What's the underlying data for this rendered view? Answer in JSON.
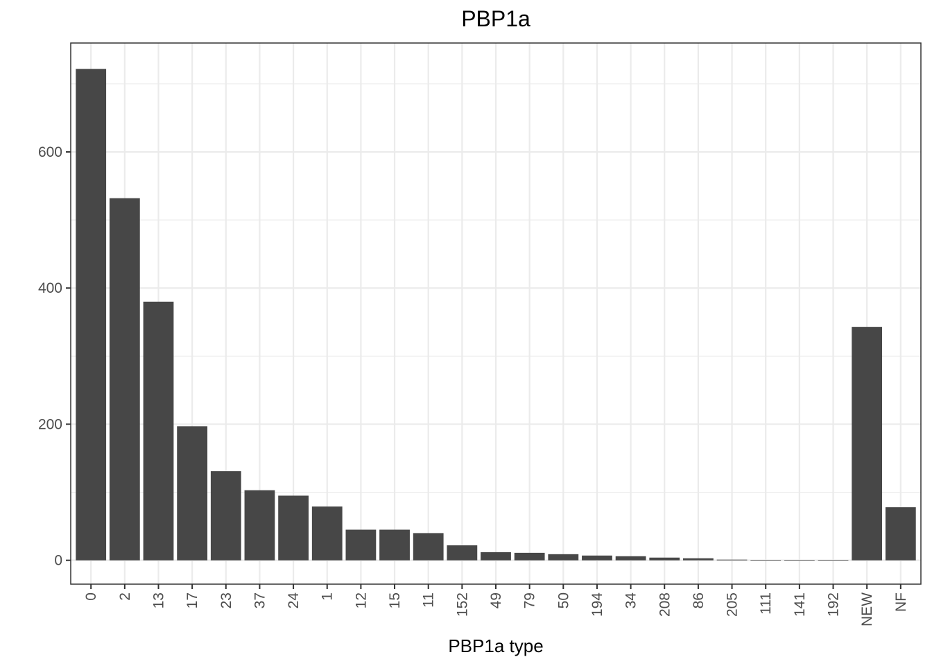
{
  "chart_data": {
    "type": "bar",
    "title": "PBP1a",
    "xlabel": "PBP1a type",
    "ylabel": "",
    "categories": [
      "0",
      "2",
      "13",
      "17",
      "23",
      "37",
      "24",
      "1",
      "12",
      "15",
      "11",
      "152",
      "49",
      "79",
      "50",
      "194",
      "34",
      "208",
      "86",
      "205",
      "111",
      "141",
      "192",
      "NEW",
      "NF"
    ],
    "values": [
      722,
      532,
      380,
      197,
      131,
      103,
      95,
      79,
      45,
      45,
      40,
      22,
      12,
      11,
      9,
      7,
      6,
      4,
      3,
      1,
      0.5,
      0.5,
      0.5,
      343,
      78
    ],
    "ylim": [
      -35,
      760
    ],
    "yticks": [
      0,
      200,
      400,
      600
    ],
    "grid": true,
    "bar_color": "#474747"
  }
}
